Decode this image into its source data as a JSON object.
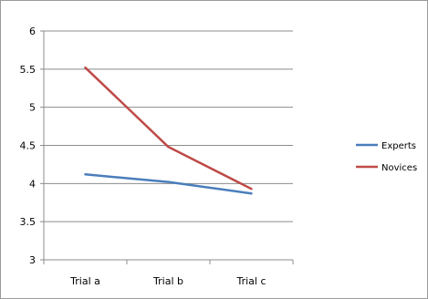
{
  "chart_data": {
    "type": "line",
    "title": "",
    "xlabel": "",
    "ylabel": "",
    "categories": [
      "Trial a",
      "Trial b",
      "Trial c"
    ],
    "ylim": [
      3,
      6
    ],
    "yticks": [
      "3",
      "3.5",
      "4",
      "4.5",
      "5",
      "5.5",
      "6"
    ],
    "grid": true,
    "legend_position": "right",
    "series": [
      {
        "name": "Experts",
        "color": "#4a7ebb",
        "values": [
          4.12,
          4.02,
          3.87
        ]
      },
      {
        "name": "Novices",
        "color": "#be4b48",
        "values": [
          5.52,
          4.48,
          3.93
        ]
      }
    ]
  }
}
